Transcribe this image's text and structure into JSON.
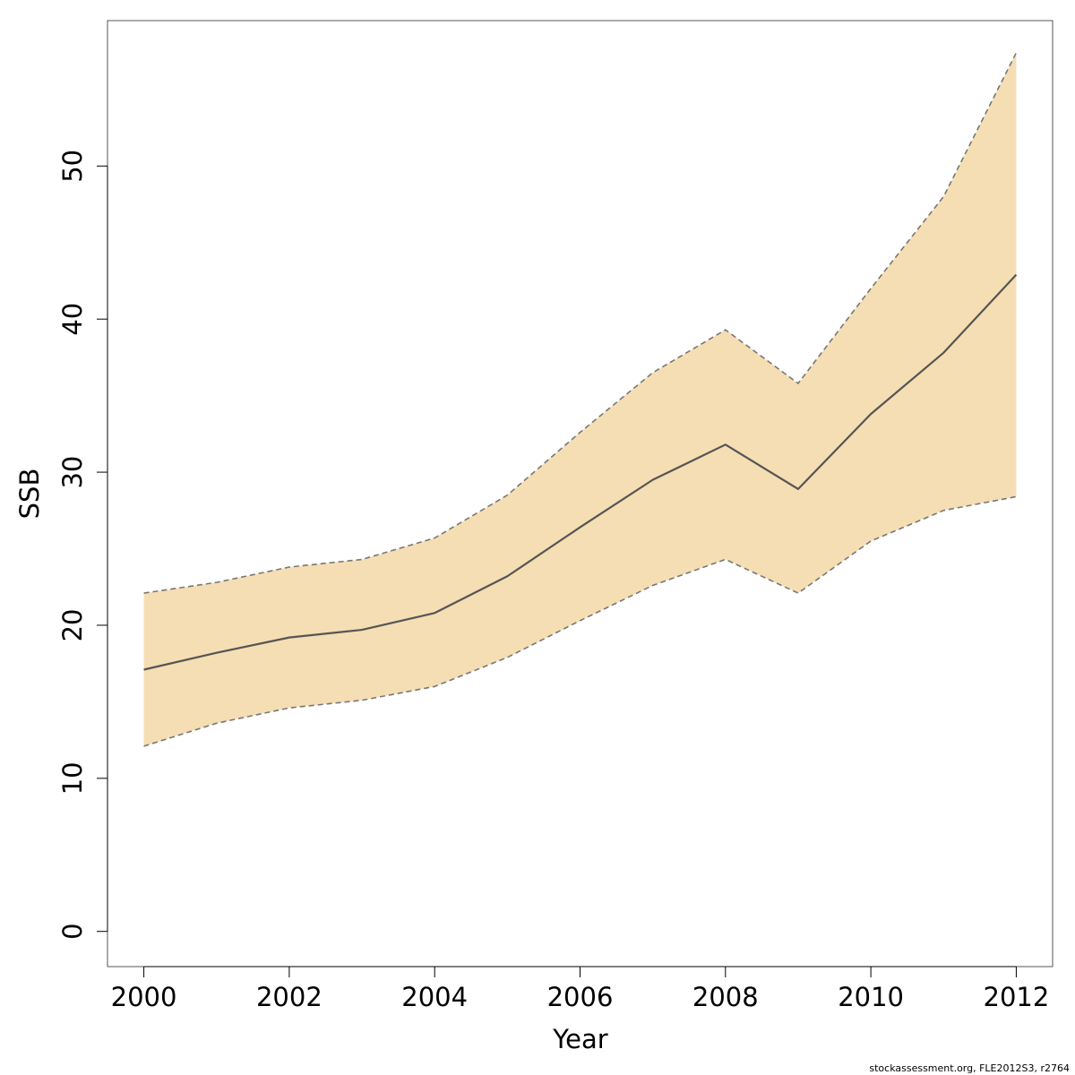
{
  "chart_data": {
    "type": "line",
    "xlabel": "Year",
    "ylabel": "SSB",
    "xlim": [
      1999.5,
      2012.5
    ],
    "ylim": [
      -2.3,
      59.5
    ],
    "xticks": [
      "2000",
      "2002",
      "2004",
      "2006",
      "2008",
      "2010",
      "2012"
    ],
    "yticks": [
      "0",
      "10",
      "20",
      "30",
      "40",
      "50"
    ],
    "x": [
      2000,
      2001,
      2002,
      2003,
      2004,
      2005,
      2006,
      2007,
      2008,
      2009,
      2010,
      2011,
      2012
    ],
    "series": [
      {
        "values": [
          17.1,
          18.2,
          19.2,
          19.7,
          20.8,
          23.2,
          26.4,
          29.5,
          31.8,
          28.9,
          33.8,
          37.8,
          42.9
        ]
      }
    ],
    "band": {
      "lower": [
        12.1,
        13.6,
        14.6,
        15.1,
        16.0,
        17.9,
        20.3,
        22.6,
        24.3,
        22.1,
        25.5,
        27.5,
        28.4
      ],
      "upper": [
        22.1,
        22.8,
        23.8,
        24.3,
        25.7,
        28.5,
        32.6,
        36.5,
        39.3,
        35.8,
        42.0,
        48.0,
        57.4
      ]
    },
    "grid": false,
    "legend": "none",
    "colors": {
      "band_fill": "#f5deb3",
      "line": "#555555",
      "band_edge": "#777777",
      "axis": "#000000"
    }
  },
  "footer": {
    "note": "stockassessment.org, FLE2012S3, r2764"
  }
}
